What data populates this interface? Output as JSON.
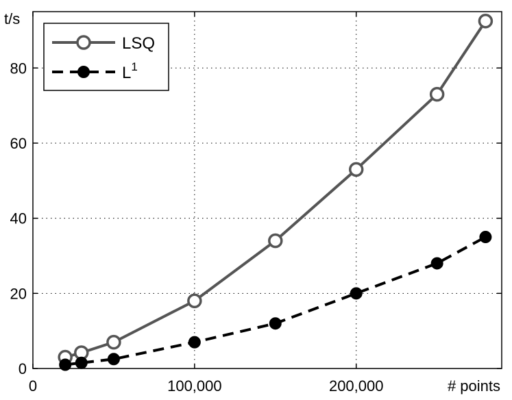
{
  "chart_data": {
    "type": "line",
    "xlabel": "# points",
    "ylabel": "t/s",
    "xlim": [
      0,
      290000
    ],
    "ylim": [
      0,
      95
    ],
    "grid": true,
    "legend_position": "top-left",
    "x_ticks": [
      {
        "value": 0,
        "label": "0"
      },
      {
        "value": 100000,
        "label": "100,000"
      },
      {
        "value": 200000,
        "label": "200,000"
      }
    ],
    "y_ticks": [
      {
        "value": 0,
        "label": "0"
      },
      {
        "value": 20,
        "label": "20"
      },
      {
        "value": 40,
        "label": "40"
      },
      {
        "value": 60,
        "label": "60"
      },
      {
        "value": 80,
        "label": "80"
      }
    ],
    "series": [
      {
        "name": "LSQ",
        "color": "#555555",
        "line_style": "solid",
        "marker": "open-circle",
        "points": [
          {
            "x": 20000,
            "y": 3
          },
          {
            "x": 30000,
            "y": 4.2
          },
          {
            "x": 50000,
            "y": 7
          },
          {
            "x": 100000,
            "y": 18
          },
          {
            "x": 150000,
            "y": 34
          },
          {
            "x": 200000,
            "y": 53
          },
          {
            "x": 250000,
            "y": 73
          },
          {
            "x": 280000,
            "y": 92.5
          }
        ]
      },
      {
        "name": "L",
        "name_superscript": "1",
        "color": "#000000",
        "line_style": "dashed",
        "marker": "filled-circle",
        "points": [
          {
            "x": 20000,
            "y": 1
          },
          {
            "x": 30000,
            "y": 1.5
          },
          {
            "x": 50000,
            "y": 2.5
          },
          {
            "x": 100000,
            "y": 7
          },
          {
            "x": 150000,
            "y": 12
          },
          {
            "x": 200000,
            "y": 20
          },
          {
            "x": 250000,
            "y": 28
          },
          {
            "x": 280000,
            "y": 35
          }
        ]
      }
    ]
  }
}
